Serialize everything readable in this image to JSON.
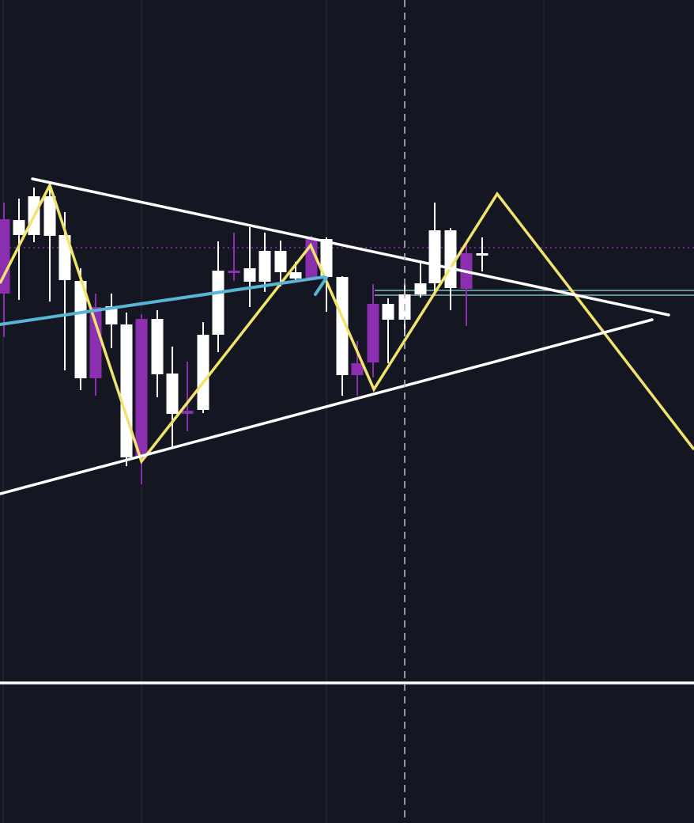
{
  "theme": {
    "background": "#141722",
    "grid": "#262a36",
    "bullish": "#ffffff",
    "bearish": "#8b2fb0",
    "zigzag": "#f2e46a",
    "trendline": "#ffffff",
    "blue_trend": "#5ab4d6",
    "teal_level": "#7fb7b3",
    "reference_dotted": "#8b2fb0",
    "crosshair": "#aeb3bd"
  },
  "chart_data": {
    "type": "candlestick",
    "title": "",
    "xlabel": "",
    "ylabel": "",
    "ylim": [
      0,
      104
    ],
    "xlim": [
      0,
      87.8
    ],
    "grid": true,
    "x_gridlines": [
      0.4,
      17.9,
      41.3,
      68.8
    ],
    "crosshair_x": 51.2,
    "series": [
      {
        "kind": "ohlc",
        "candles": [
          {
            "x": 0.5,
            "o": 76.3,
            "h": 78.4,
            "l": 61.4,
            "c": 66.9
          },
          {
            "x": 2.4,
            "o": 74.3,
            "h": 78.9,
            "l": 66.1,
            "c": 76.2
          },
          {
            "x": 4.3,
            "o": 74.3,
            "h": 80.3,
            "l": 73.4,
            "c": 79.2
          },
          {
            "x": 6.3,
            "o": 74.2,
            "h": 80.4,
            "l": 65.9,
            "c": 79.2
          },
          {
            "x": 8.2,
            "o": 68.6,
            "h": 77.2,
            "l": 57.2,
            "c": 74.3
          },
          {
            "x": 10.2,
            "o": 56.2,
            "h": 70.1,
            "l": 54.7,
            "c": 68.5
          },
          {
            "x": 12.1,
            "o": 65.2,
            "h": 66.9,
            "l": 54.0,
            "c": 56.2
          },
          {
            "x": 14.1,
            "o": 63.0,
            "h": 66.9,
            "l": 60.0,
            "c": 65.3
          },
          {
            "x": 16.0,
            "o": 46.2,
            "h": 64.5,
            "l": 45.1,
            "c": 63.0
          },
          {
            "x": 17.9,
            "o": 63.7,
            "h": 64.3,
            "l": 42.8,
            "c": 46.2
          },
          {
            "x": 19.9,
            "o": 56.7,
            "h": 64.8,
            "l": 53.8,
            "c": 63.7
          },
          {
            "x": 21.8,
            "o": 51.7,
            "h": 60.2,
            "l": 47.4,
            "c": 56.8
          },
          {
            "x": 23.7,
            "o": 52.1,
            "h": 58.3,
            "l": 49.5,
            "c": 51.7
          },
          {
            "x": 25.7,
            "o": 52.2,
            "h": 63.3,
            "l": 51.8,
            "c": 61.7
          },
          {
            "x": 27.6,
            "o": 61.7,
            "h": 73.5,
            "l": 59.5,
            "c": 69.8
          },
          {
            "x": 29.6,
            "o": 69.8,
            "h": 74.6,
            "l": 68.5,
            "c": 69.7
          },
          {
            "x": 31.6,
            "o": 68.4,
            "h": 75.3,
            "l": 65.2,
            "c": 70.1
          },
          {
            "x": 33.5,
            "o": 68.4,
            "h": 74.6,
            "l": 67.1,
            "c": 72.3
          },
          {
            "x": 35.5,
            "o": 69.6,
            "h": 73.6,
            "l": 67.8,
            "c": 72.3
          },
          {
            "x": 37.4,
            "o": 68.8,
            "h": 70.9,
            "l": 68.4,
            "c": 69.6
          },
          {
            "x": 39.4,
            "o": 73.8,
            "h": 74.2,
            "l": 68.7,
            "c": 68.9
          },
          {
            "x": 41.3,
            "o": 69.0,
            "h": 74.0,
            "l": 64.6,
            "c": 73.8
          },
          {
            "x": 43.3,
            "o": 56.6,
            "h": 69.1,
            "l": 54.0,
            "c": 69.0
          },
          {
            "x": 45.2,
            "o": 58.1,
            "h": 60.9,
            "l": 54.0,
            "c": 56.6
          },
          {
            "x": 47.2,
            "o": 65.6,
            "h": 68.1,
            "l": 56.3,
            "c": 58.2
          },
          {
            "x": 49.1,
            "o": 63.6,
            "h": 66.3,
            "l": 58.1,
            "c": 65.6
          },
          {
            "x": 51.2,
            "o": 63.6,
            "h": 68.1,
            "l": 61.5,
            "c": 66.8
          },
          {
            "x": 53.2,
            "o": 66.8,
            "h": 71.1,
            "l": 66.4,
            "c": 68.2
          },
          {
            "x": 55.0,
            "o": 68.2,
            "h": 78.4,
            "l": 66.9,
            "c": 74.9
          },
          {
            "x": 57.0,
            "o": 67.6,
            "h": 75.2,
            "l": 64.8,
            "c": 74.9
          },
          {
            "x": 59.0,
            "o": 72.0,
            "h": 73.2,
            "l": 62.8,
            "c": 67.5
          },
          {
            "x": 61.0,
            "o": 72.0,
            "h": 74.0,
            "l": 69.7,
            "c": 72.0
          }
        ]
      },
      {
        "kind": "zigzag",
        "points": [
          [
            0,
            68.2
          ],
          [
            6.3,
            80.6
          ],
          [
            17.9,
            45.7
          ],
          [
            39.3,
            73.0
          ],
          [
            47.3,
            54.8
          ],
          [
            62.9,
            79.5
          ],
          [
            87.8,
            47.2
          ]
        ]
      },
      {
        "kind": "line",
        "name": "upper-trendline",
        "points": [
          [
            4.1,
            81.4
          ],
          [
            84.6,
            64.2
          ]
        ]
      },
      {
        "kind": "line",
        "name": "lower-trendline",
        "points": [
          [
            0,
            41.6
          ],
          [
            82.5,
            63.6
          ]
        ]
      },
      {
        "kind": "line",
        "name": "blue-trendline",
        "points": [
          [
            0,
            63.0
          ],
          [
            41.0,
            69.0
          ]
        ]
      },
      {
        "kind": "line",
        "name": "blue-stub",
        "points": [
          [
            39.9,
            66.8
          ],
          [
            41.3,
            68.9
          ]
        ]
      },
      {
        "kind": "hline",
        "name": "horizontal-level",
        "y": 17.7
      },
      {
        "kind": "hline-dotted",
        "name": "reference-level",
        "y": 72.7
      },
      {
        "kind": "hband",
        "name": "teal-levels",
        "y": [
          67.3,
          66.7
        ],
        "from_x": 47.4
      }
    ]
  }
}
